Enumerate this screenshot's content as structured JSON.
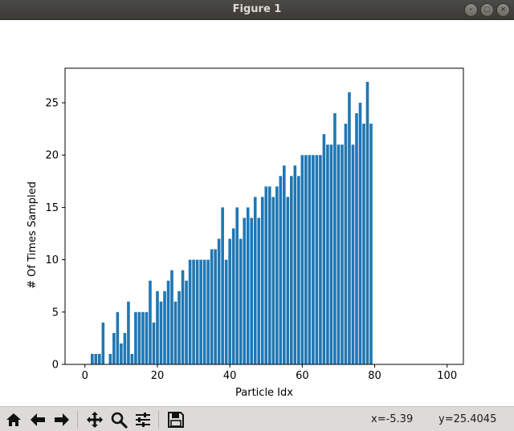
{
  "window": {
    "title": "Figure 1"
  },
  "window_buttons": [
    {
      "name": "minimize-button",
      "glyph": "–"
    },
    {
      "name": "maximize-button",
      "glyph": "□"
    },
    {
      "name": "close-button",
      "glyph": "×"
    }
  ],
  "toolbar": {
    "buttons": [
      {
        "name": "home-button",
        "icon": "home-icon"
      },
      {
        "name": "back-button",
        "icon": "arrow-left-icon"
      },
      {
        "name": "forward-button",
        "icon": "arrow-right-icon"
      },
      {
        "name": "pan-button",
        "icon": "move-icon"
      },
      {
        "name": "zoom-button",
        "icon": "magnifier-icon"
      },
      {
        "name": "configure-subplots-button",
        "icon": "sliders-icon"
      },
      {
        "name": "save-button",
        "icon": "floppy-icon"
      }
    ],
    "x_readout": "x=-5.39",
    "y_readout": "y=25.4045"
  },
  "chart_data": {
    "type": "bar",
    "xlabel": "Particle Idx",
    "ylabel": "# Of Times Sampled",
    "xlim": [
      -5.5,
      104.5
    ],
    "ylim": [
      0,
      28.3
    ],
    "xticks": [
      0,
      20,
      40,
      60,
      80,
      100
    ],
    "yticks": [
      0,
      5,
      10,
      15,
      20,
      25
    ],
    "bar_width": 0.8,
    "color": "#1f77b4",
    "grid": false,
    "x": [
      0,
      1,
      2,
      3,
      4,
      5,
      6,
      7,
      8,
      9,
      10,
      11,
      12,
      13,
      14,
      15,
      16,
      17,
      18,
      19,
      20,
      21,
      22,
      23,
      24,
      25,
      26,
      27,
      28,
      29,
      30,
      31,
      32,
      33,
      34,
      35,
      36,
      37,
      38,
      39,
      40,
      41,
      42,
      43,
      44,
      45,
      46,
      47,
      48,
      49,
      50,
      51,
      52,
      53,
      54,
      55,
      56,
      57,
      58,
      59,
      60,
      61,
      62,
      63,
      64,
      65,
      66,
      67,
      68,
      69,
      70,
      71,
      72,
      73,
      74,
      75,
      76,
      77,
      78,
      79
    ],
    "values": [
      0,
      0,
      1,
      1,
      1,
      4,
      0,
      1,
      3,
      5,
      2,
      3,
      6,
      1,
      5,
      5,
      5,
      5,
      8,
      4,
      7,
      6,
      7,
      8,
      9,
      6,
      7,
      9,
      8,
      10,
      10,
      10,
      10,
      10,
      10,
      11,
      11,
      12,
      15,
      10,
      12,
      13,
      15,
      12,
      14,
      15,
      14,
      16,
      14,
      16,
      17,
      17,
      16,
      17,
      18,
      19,
      16,
      18,
      19,
      18,
      20,
      20,
      20,
      20,
      20,
      20,
      22,
      21,
      21,
      24,
      21,
      21,
      23,
      26,
      21,
      24,
      25,
      23,
      27,
      23
    ]
  }
}
